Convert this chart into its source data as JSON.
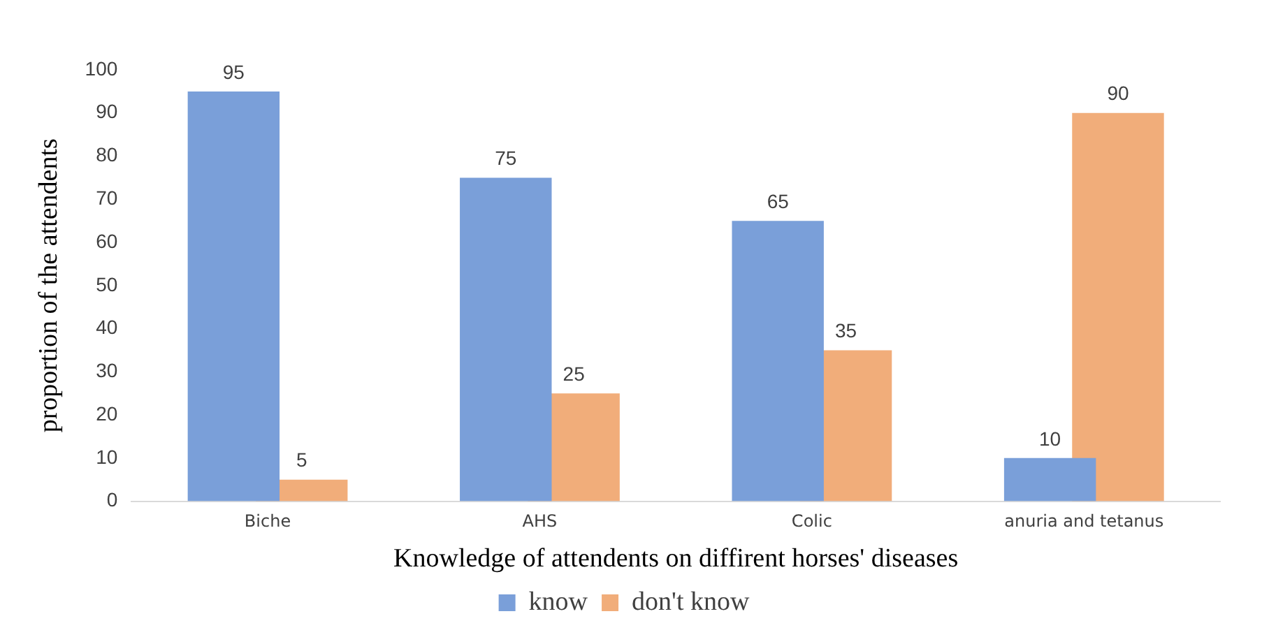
{
  "chart_data": {
    "type": "bar",
    "xlabel": "Knowledge of attendents on diffirent horses' diseases",
    "ylabel": "proportion of the attendents",
    "categories": [
      "Biche",
      "AHS",
      "Colic",
      "anuria and tetanus"
    ],
    "series": [
      {
        "name": "know",
        "color": "#7a9fd9",
        "values": [
          95,
          75,
          65,
          10
        ]
      },
      {
        "name": "don't know",
        "color": "#f0a46c",
        "values": [
          5,
          25,
          35,
          90
        ]
      }
    ],
    "ylim": [
      0,
      100
    ],
    "yticks": [
      0,
      10,
      20,
      30,
      40,
      50,
      60,
      70,
      80,
      90,
      100
    ],
    "grid": false,
    "legend": "bottom",
    "data_labels": true
  }
}
